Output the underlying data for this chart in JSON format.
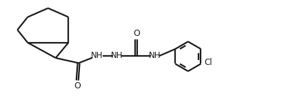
{
  "bg_color": "#ffffff",
  "line_color": "#1a1a1a",
  "line_width": 1.6,
  "font_size": 8.5,
  "figsize": [
    4.28,
    1.42
  ],
  "dpi": 100,
  "xlim": [
    0,
    10.5
  ],
  "ylim": [
    -0.3,
    3.5
  ]
}
